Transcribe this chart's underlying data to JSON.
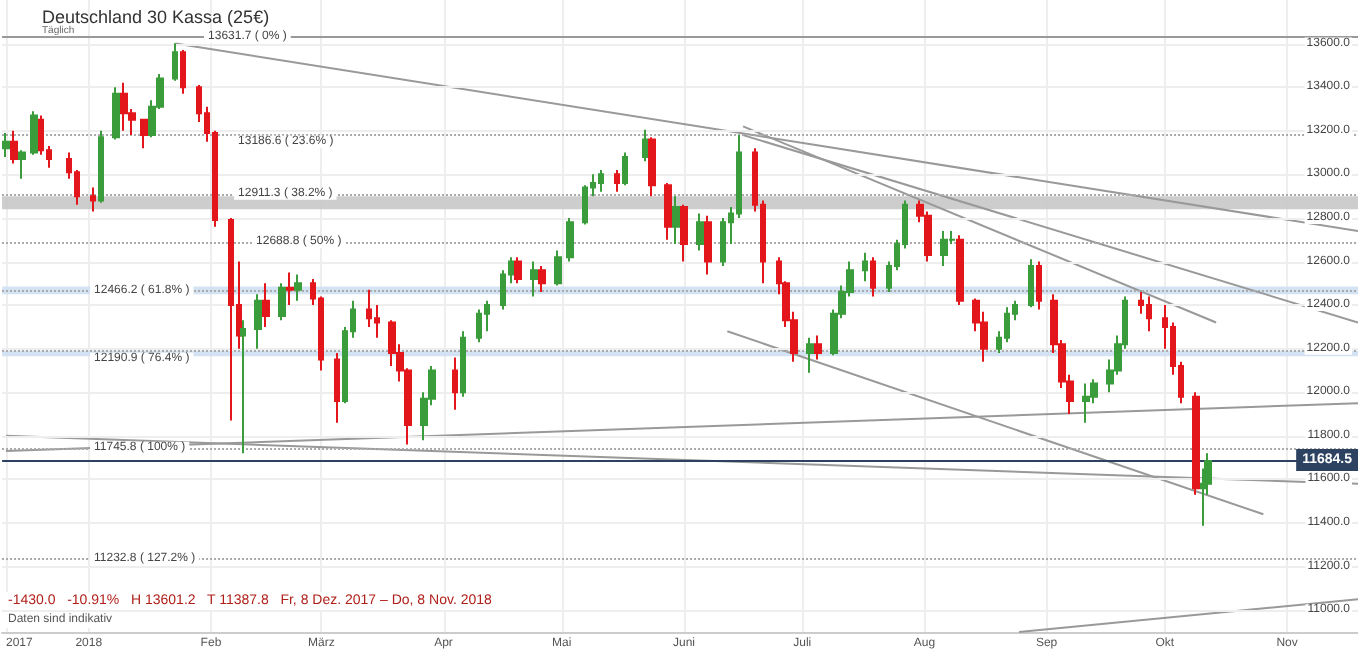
{
  "chart_data": {
    "type": "candlestick",
    "title": "Deutschland 30 Kassa (25€)",
    "subtitle": "Täglich",
    "x": [
      "2017-12-11",
      "2017-12-13",
      "2017-12-15",
      "2017-12-18",
      "2017-12-20",
      "2017-12-22",
      "2017-12-27",
      "2017-12-29",
      "2018-01-02",
      "2018-01-04",
      "2018-01-08",
      "2018-01-10",
      "2018-01-12",
      "2018-01-15",
      "2018-01-17",
      "2018-01-19",
      "2018-01-23",
      "2018-01-25",
      "2018-01-29",
      "2018-01-31",
      "2018-02-02",
      "2018-02-06",
      "2018-02-08",
      "2018-02-09",
      "2018-02-13",
      "2018-02-15",
      "2018-02-19",
      "2018-02-21",
      "2018-02-23",
      "2018-02-27",
      "2018-03-01",
      "2018-03-05",
      "2018-03-07",
      "2018-03-09",
      "2018-03-13",
      "2018-03-15",
      "2018-03-19",
      "2018-03-21",
      "2018-03-23",
      "2018-03-27",
      "2018-03-29",
      "2018-04-04",
      "2018-04-06",
      "2018-04-10",
      "2018-04-12",
      "2018-04-16",
      "2018-04-18",
      "2018-04-20",
      "2018-04-24",
      "2018-04-26",
      "2018-04-30",
      "2018-05-03",
      "2018-05-07",
      "2018-05-09",
      "2018-05-11",
      "2018-05-15",
      "2018-05-17",
      "2018-05-22",
      "2018-05-24",
      "2018-05-28",
      "2018-05-30",
      "2018-06-01",
      "2018-06-05",
      "2018-06-07",
      "2018-06-11",
      "2018-06-13",
      "2018-06-15",
      "2018-06-19",
      "2018-06-21",
      "2018-06-25",
      "2018-06-27",
      "2018-06-29",
      "2018-07-03",
      "2018-07-05",
      "2018-07-09",
      "2018-07-11",
      "2018-07-13",
      "2018-07-17",
      "2018-07-19",
      "2018-07-23",
      "2018-07-25",
      "2018-07-27",
      "2018-07-31",
      "2018-08-02",
      "2018-08-06",
      "2018-08-08",
      "2018-08-10",
      "2018-08-14",
      "2018-08-16",
      "2018-08-20",
      "2018-08-22",
      "2018-08-24",
      "2018-08-28",
      "2018-08-30",
      "2018-09-03",
      "2018-09-05",
      "2018-09-07",
      "2018-09-11",
      "2018-09-13",
      "2018-09-17",
      "2018-09-19",
      "2018-09-21",
      "2018-09-25",
      "2018-09-27",
      "2018-10-01",
      "2018-10-03",
      "2018-10-05",
      "2018-10-09",
      "2018-10-11",
      "2018-10-12"
    ],
    "ohlc": [
      [
        13120,
        13190,
        13080,
        13150
      ],
      [
        13150,
        13200,
        13050,
        13070
      ],
      [
        13070,
        13110,
        12980,
        13100
      ],
      [
        13100,
        13290,
        13090,
        13270
      ],
      [
        13250,
        13270,
        13090,
        13110
      ],
      [
        13110,
        13130,
        13030,
        13070
      ],
      [
        13070,
        13100,
        12980,
        13010
      ],
      [
        13010,
        13020,
        12860,
        12900
      ],
      [
        12900,
        12940,
        12830,
        12880
      ],
      [
        12880,
        13200,
        12870,
        13170
      ],
      [
        13170,
        13400,
        13160,
        13370
      ],
      [
        13370,
        13420,
        13200,
        13280
      ],
      [
        13280,
        13300,
        13180,
        13250
      ],
      [
        13250,
        13250,
        13120,
        13180
      ],
      [
        13180,
        13340,
        13170,
        13310
      ],
      [
        13310,
        13460,
        13300,
        13440
      ],
      [
        13440,
        13601.2,
        13430,
        13560
      ],
      [
        13560,
        13570,
        13370,
        13400
      ],
      [
        13400,
        13410,
        13240,
        13280
      ],
      [
        13280,
        13310,
        13150,
        13190
      ],
      [
        13190,
        13200,
        12760,
        12790
      ],
      [
        12790,
        12800,
        11870,
        12400
      ],
      [
        12400,
        12600,
        12200,
        12260
      ],
      [
        12260,
        12330,
        11720,
        12290
      ],
      [
        12290,
        12450,
        12200,
        12420
      ],
      [
        12420,
        12500,
        12300,
        12350
      ],
      [
        12350,
        12500,
        12330,
        12480
      ],
      [
        12480,
        12550,
        12400,
        12470
      ],
      [
        12470,
        12540,
        12420,
        12500
      ],
      [
        12500,
        12520,
        12400,
        12430
      ],
      [
        12430,
        12440,
        12100,
        12150
      ],
      [
        12150,
        12180,
        11860,
        11960
      ],
      [
        11960,
        12300,
        11950,
        12280
      ],
      [
        12280,
        12420,
        12250,
        12380
      ],
      [
        12380,
        12470,
        12300,
        12340
      ],
      [
        12340,
        12400,
        12250,
        12320
      ],
      [
        12320,
        12330,
        12120,
        12180
      ],
      [
        12180,
        12220,
        12050,
        12100
      ],
      [
        12100,
        12110,
        11760,
        11850
      ],
      [
        11850,
        12000,
        11780,
        11970
      ],
      [
        11970,
        12120,
        11940,
        12100
      ],
      [
        12100,
        12160,
        11920,
        12000
      ],
      [
        12000,
        12280,
        11980,
        12250
      ],
      [
        12250,
        12380,
        12230,
        12360
      ],
      [
        12360,
        12420,
        12280,
        12400
      ],
      [
        12400,
        12560,
        12380,
        12540
      ],
      [
        12540,
        12620,
        12500,
        12600
      ],
      [
        12600,
        12620,
        12500,
        12520
      ],
      [
        12520,
        12600,
        12440,
        12560
      ],
      [
        12560,
        12580,
        12460,
        12500
      ],
      [
        12500,
        12650,
        12490,
        12620
      ],
      [
        12620,
        12800,
        12600,
        12780
      ],
      [
        12780,
        12950,
        12770,
        12940
      ],
      [
        12940,
        13000,
        12900,
        12960
      ],
      [
        12960,
        13020,
        12920,
        13000
      ],
      [
        13000,
        13020,
        12920,
        12960
      ],
      [
        12960,
        13100,
        12950,
        13080
      ],
      [
        13080,
        13205,
        13060,
        13160
      ],
      [
        13160,
        13170,
        12900,
        12950
      ],
      [
        12950,
        12960,
        12700,
        12760
      ],
      [
        12760,
        12900,
        12680,
        12850
      ],
      [
        12850,
        12860,
        12600,
        12680
      ],
      [
        12680,
        12820,
        12650,
        12780
      ],
      [
        12780,
        12810,
        12540,
        12600
      ],
      [
        12600,
        12800,
        12580,
        12780
      ],
      [
        12780,
        12850,
        12680,
        12820
      ],
      [
        12820,
        13180,
        12800,
        13100
      ],
      [
        13100,
        13120,
        12830,
        12860
      ],
      [
        12860,
        12880,
        12500,
        12600
      ],
      [
        12600,
        12620,
        12450,
        12500
      ],
      [
        12500,
        12510,
        12300,
        12330
      ],
      [
        12330,
        12370,
        12140,
        12180
      ],
      [
        12180,
        12250,
        12090,
        12220
      ],
      [
        12220,
        12260,
        12150,
        12180
      ],
      [
        12180,
        12380,
        12170,
        12360
      ],
      [
        12360,
        12490,
        12340,
        12460
      ],
      [
        12460,
        12600,
        12440,
        12560
      ],
      [
        12560,
        12640,
        12510,
        12600
      ],
      [
        12600,
        12620,
        12440,
        12480
      ],
      [
        12480,
        12600,
        12460,
        12580
      ],
      [
        12580,
        12700,
        12560,
        12680
      ],
      [
        12680,
        12880,
        12660,
        12860
      ],
      [
        12860,
        12880,
        12780,
        12810
      ],
      [
        12810,
        12830,
        12600,
        12630
      ],
      [
        12630,
        12740,
        12580,
        12700
      ],
      [
        12700,
        12740,
        12680,
        12700
      ],
      [
        12700,
        12720,
        12400,
        12420
      ],
      [
        12420,
        12430,
        12280,
        12320
      ],
      [
        12320,
        12370,
        12140,
        12200
      ],
      [
        12200,
        12280,
        12180,
        12250
      ],
      [
        12250,
        12390,
        12230,
        12360
      ],
      [
        12360,
        12420,
        12330,
        12400
      ],
      [
        12400,
        12610,
        12390,
        12580
      ],
      [
        12580,
        12600,
        12380,
        12420
      ],
      [
        12420,
        12450,
        12180,
        12220
      ],
      [
        12220,
        12240,
        12020,
        12050
      ],
      [
        12050,
        12080,
        11900,
        11960
      ],
      [
        11960,
        12040,
        11860,
        11980
      ],
      [
        11980,
        12060,
        11950,
        12040
      ],
      [
        12040,
        12150,
        12000,
        12100
      ],
      [
        12100,
        12260,
        12080,
        12220
      ],
      [
        12220,
        12440,
        12200,
        12420
      ],
      [
        12420,
        12460,
        12360,
        12400
      ],
      [
        12400,
        12440,
        12280,
        12340
      ],
      [
        12340,
        12400,
        12200,
        12300
      ],
      [
        12300,
        12320,
        12080,
        12120
      ],
      [
        12120,
        12140,
        11950,
        11980
      ],
      [
        11980,
        12000,
        11530,
        11560
      ],
      [
        11560,
        11650,
        11387.8,
        11580
      ],
      [
        11580,
        11720,
        11530,
        11684.5
      ]
    ],
    "colors": [
      "#3a9c3a",
      "#e3161c",
      "#3a9c3a",
      "#3a9c3a",
      "#e3161c",
      "#e3161c",
      "#e3161c",
      "#e3161c",
      "#e3161c",
      "#3a9c3a",
      "#3a9c3a",
      "#e3161c",
      "#e3161c",
      "#e3161c",
      "#3a9c3a",
      "#3a9c3a",
      "#3a9c3a",
      "#e3161c",
      "#e3161c",
      "#e3161c",
      "#e3161c",
      "#e3161c",
      "#e3161c",
      "#3a9c3a",
      "#3a9c3a",
      "#e3161c",
      "#3a9c3a",
      "#e3161c",
      "#3a9c3a",
      "#e3161c",
      "#e3161c",
      "#e3161c",
      "#3a9c3a",
      "#3a9c3a",
      "#e3161c",
      "#e3161c",
      "#e3161c",
      "#e3161c",
      "#e3161c",
      "#3a9c3a",
      "#3a9c3a",
      "#e3161c",
      "#3a9c3a",
      "#3a9c3a",
      "#3a9c3a",
      "#3a9c3a",
      "#3a9c3a",
      "#e3161c",
      "#3a9c3a",
      "#e3161c",
      "#3a9c3a",
      "#3a9c3a",
      "#3a9c3a",
      "#3a9c3a",
      "#3a9c3a",
      "#e3161c",
      "#3a9c3a",
      "#3a9c3a",
      "#e3161c",
      "#e3161c",
      "#3a9c3a",
      "#e3161c",
      "#3a9c3a",
      "#e3161c",
      "#3a9c3a",
      "#3a9c3a",
      "#3a9c3a",
      "#e3161c",
      "#e3161c",
      "#e3161c",
      "#e3161c",
      "#e3161c",
      "#3a9c3a",
      "#e3161c",
      "#3a9c3a",
      "#3a9c3a",
      "#3a9c3a",
      "#3a9c3a",
      "#e3161c",
      "#3a9c3a",
      "#3a9c3a",
      "#3a9c3a",
      "#e3161c",
      "#e3161c",
      "#3a9c3a",
      "#3a9c3a",
      "#e3161c",
      "#e3161c",
      "#e3161c",
      "#3a9c3a",
      "#3a9c3a",
      "#3a9c3a",
      "#3a9c3a",
      "#e3161c",
      "#e3161c",
      "#e3161c",
      "#e3161c",
      "#3a9c3a",
      "#3a9c3a",
      "#3a9c3a",
      "#3a9c3a",
      "#3a9c3a",
      "#e3161c",
      "#e3161c",
      "#e3161c",
      "#e3161c",
      "#e3161c",
      "#e3161c",
      "#3a9c3a",
      "#3a9c3a"
    ],
    "series": [
      {
        "type": "line",
        "x": [
          "2018-01-23",
          "2018-11-19"
        ],
        "values": [
          13600,
          12740
        ],
        "color": "#999999"
      },
      {
        "type": "line",
        "x": [
          "2018-06-16",
          "2018-11-19"
        ],
        "values": [
          13180,
          12320
        ],
        "color": "#999999"
      },
      {
        "type": "line",
        "x": [
          "2018-06-16",
          "2018-10-14"
        ],
        "values": [
          13220,
          12320
        ],
        "color": "#999999"
      },
      {
        "type": "line",
        "x": [
          "2018-06-12",
          "2018-10-26"
        ],
        "values": [
          12280,
          11440
        ],
        "color": "#999999"
      },
      {
        "type": "line",
        "x": [
          "2017-12-11",
          "2018-11-19"
        ],
        "values": [
          11730,
          11950
        ],
        "color": "#999999"
      },
      {
        "type": "line",
        "x": [
          "2017-12-11",
          "2018-11-19"
        ],
        "values": [
          11800,
          11580
        ],
        "color": "#999999"
      },
      {
        "type": "line",
        "x": [
          "2018-08-25",
          "2018-11-19"
        ],
        "values": [
          10900,
          11050
        ],
        "color": "#999999"
      }
    ],
    "xlim": [
      "2017-12-10",
      "2018-11-19"
    ],
    "xticks": [
      {
        "value": "2017-12-11",
        "label": "2017"
      },
      {
        "value": "2018-01-01",
        "label": "2018"
      },
      {
        "value": "2018-02-01",
        "label": "Feb"
      },
      {
        "value": "2018-03-01",
        "label": "März"
      },
      {
        "value": "2018-04-01",
        "label": "Apr"
      },
      {
        "value": "2018-05-01",
        "label": "Mai"
      },
      {
        "value": "2018-06-01",
        "label": "Juni"
      },
      {
        "value": "2018-07-01",
        "label": "Juli"
      },
      {
        "value": "2018-08-01",
        "label": "Aug"
      },
      {
        "value": "2018-09-01",
        "label": "Sep"
      },
      {
        "value": "2018-10-01",
        "label": "Okt"
      },
      {
        "value": "2018-11-01",
        "label": "Nov"
      }
    ],
    "ylim": [
      10900,
      13800
    ],
    "yticks": [
      {
        "value": 11000,
        "label": "11000.0"
      },
      {
        "value": 11200,
        "label": "11200.0"
      },
      {
        "value": 11400,
        "label": "11400.0"
      },
      {
        "value": 11600,
        "label": "11600.0"
      },
      {
        "value": 11800,
        "label": "11800.0"
      },
      {
        "value": 12000,
        "label": "12000.0"
      },
      {
        "value": 12200,
        "label": "12200.0"
      },
      {
        "value": 12400,
        "label": "12400.0"
      },
      {
        "value": 12600,
        "label": "12600.0"
      },
      {
        "value": 12800,
        "label": "12800.0"
      },
      {
        "value": 13000,
        "label": "13000.0"
      },
      {
        "value": 13200,
        "label": "13200.0"
      },
      {
        "value": 13400,
        "label": "13400.0"
      },
      {
        "value": 13600,
        "label": "13600.0"
      }
    ],
    "grid": true,
    "ref_lines": [
      {
        "axis": "y",
        "value": 13631.7,
        "label": "13631.7 ( 0% )",
        "color": "#999999",
        "line_style": "solid"
      },
      {
        "axis": "y",
        "value": 13186.6,
        "label": "13186.6 ( 23.6% )",
        "color": "#aaaaaa",
        "line_style": "dotted"
      },
      {
        "axis": "y",
        "value": 12911.3,
        "label": "12911.3 ( 38.2% )",
        "color": "#aaaaaa",
        "line_style": "dotted"
      },
      {
        "axis": "y",
        "value": 12688.8,
        "label": "12688.8 ( 50% )",
        "color": "#aaaaaa",
        "line_style": "dotted"
      },
      {
        "axis": "y",
        "value": 12466.2,
        "label": "12466.2 ( 61.8% )",
        "color": "#aaaaaa",
        "line_style": "dotted"
      },
      {
        "axis": "y",
        "value": 12190.9,
        "label": "12190.9 ( 76.4% )",
        "color": "#aaaaaa",
        "line_style": "dotted"
      },
      {
        "axis": "y",
        "value": 11745.8,
        "label": "11745.8 ( 100% )",
        "color": "#aaaaaa",
        "line_style": "dotted"
      },
      {
        "axis": "y",
        "value": 11232.8,
        "label": "11232.8 ( 127.2% )",
        "color": "#aaaaaa",
        "line_style": "dotted"
      },
      {
        "axis": "y",
        "value": 11684.5,
        "label": "11684.5",
        "color": "#2d4260",
        "line_style": "solid"
      }
    ],
    "bands": [
      {
        "axis": "y",
        "from": 12840,
        "to": 12900,
        "color": "#c8c8c8"
      },
      {
        "axis": "y",
        "from": 12450,
        "to": 12485,
        "color": "#cfe0f2"
      },
      {
        "axis": "y",
        "from": 12165,
        "to": 12190,
        "color": "#cfe0f2"
      }
    ],
    "annotations": [
      "-1430.0   -10.91%   H 13601.2   T 11387.8   Fr, 8 Dez. 2017 – Do, 8 Nov. 2018",
      "Daten sind indikativ"
    ]
  }
}
